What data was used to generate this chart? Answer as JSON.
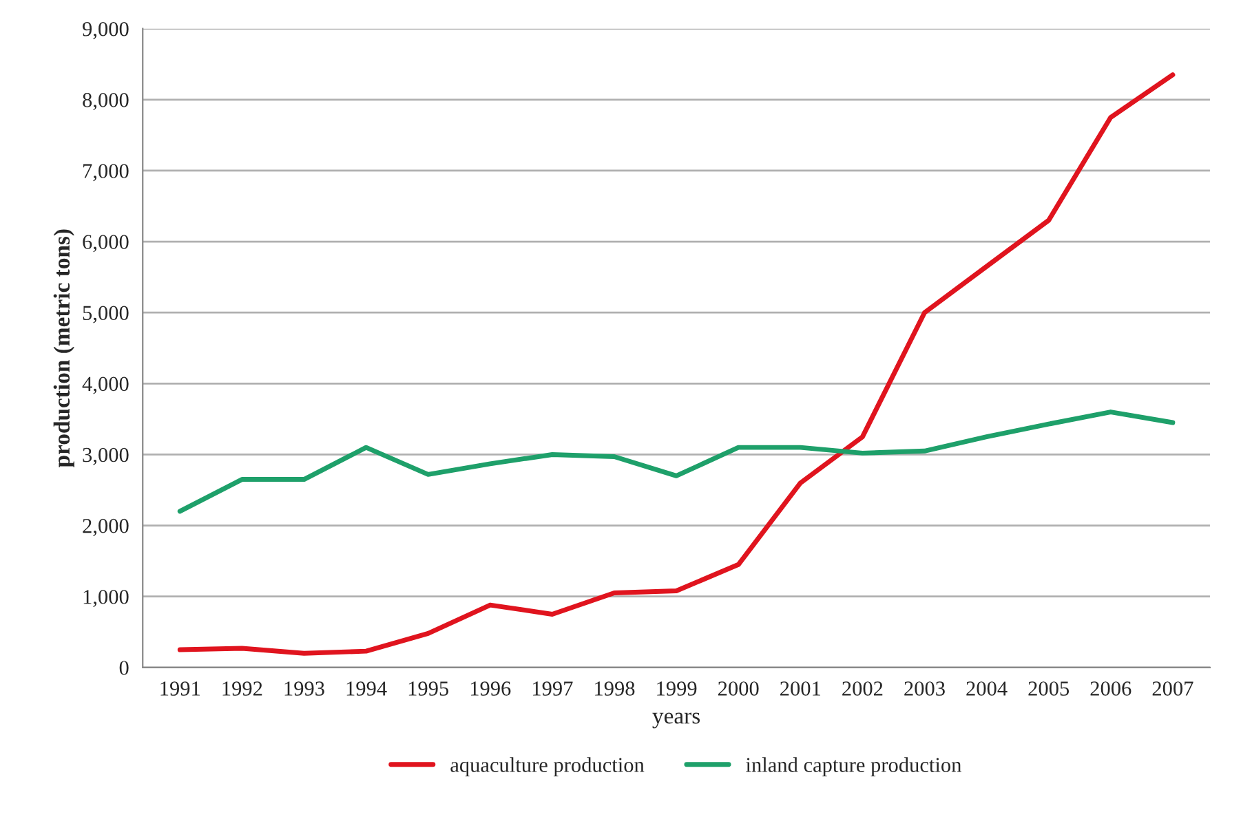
{
  "chart_data": {
    "type": "line",
    "xlabel": "years",
    "ylabel": "production (metric tons)",
    "categories": [
      "1991",
      "1992",
      "1993",
      "1994",
      "1995",
      "1996",
      "1997",
      "1998",
      "1999",
      "2000",
      "2001",
      "2002",
      "2003",
      "2004",
      "2005",
      "2006",
      "2007"
    ],
    "series": [
      {
        "name": "aquaculture production",
        "color": "#e0141e",
        "values": [
          250,
          270,
          200,
          230,
          480,
          880,
          750,
          1050,
          1080,
          1450,
          2600,
          3250,
          5000,
          5650,
          6300,
          7750,
          8350
        ]
      },
      {
        "name": "inland capture production",
        "color": "#1ea06a",
        "values": [
          2200,
          2650,
          2650,
          3100,
          2720,
          2870,
          3000,
          2970,
          2700,
          3100,
          3100,
          3020,
          3050,
          3250,
          3430,
          3600,
          3450
        ]
      }
    ],
    "ylim": [
      0,
      9000
    ],
    "yticks": [
      {
        "value": 0,
        "label": "0"
      },
      {
        "value": 1000,
        "label": "1,000"
      },
      {
        "value": 2000,
        "label": "2,000"
      },
      {
        "value": 3000,
        "label": "3,000"
      },
      {
        "value": 4000,
        "label": "4,000"
      },
      {
        "value": 5000,
        "label": "5,000"
      },
      {
        "value": 6000,
        "label": "6,000"
      },
      {
        "value": 7000,
        "label": "7,000"
      },
      {
        "value": 8000,
        "label": "8,000"
      },
      {
        "value": 9000,
        "label": "9,000"
      }
    ],
    "grid": "y",
    "legend": "bottom",
    "marker": "none",
    "line_style": "solid"
  }
}
